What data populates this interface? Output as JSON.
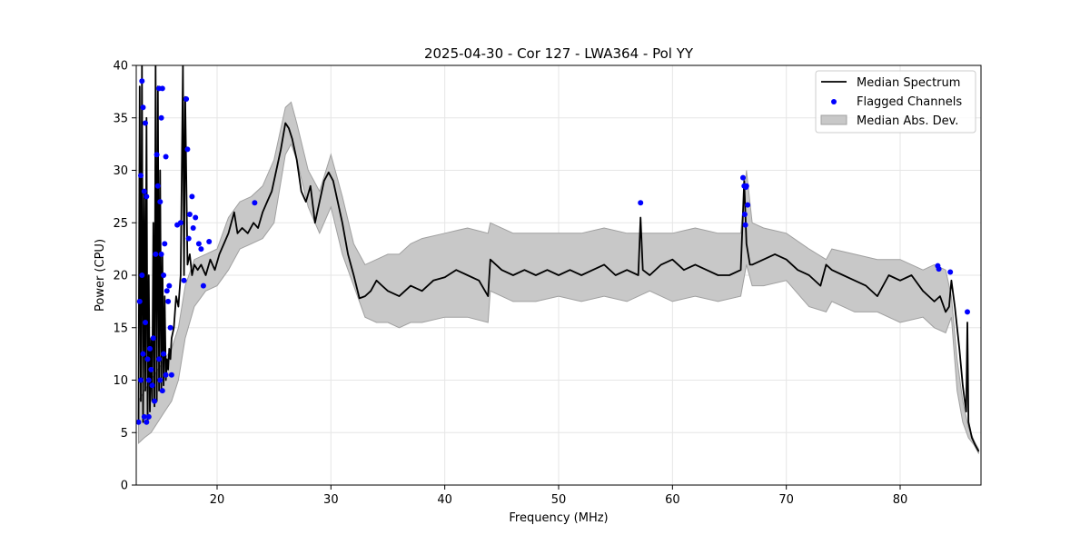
{
  "chart_data": {
    "type": "line",
    "title": "2025-04-30 - Cor 127 - LWA364 - Pol YY",
    "xlabel": "Frequency (MHz)",
    "ylabel": "Power (CPU)",
    "xlim": [
      12.9,
      87.1
    ],
    "ylim": [
      0,
      40
    ],
    "xticks": [
      20,
      30,
      40,
      50,
      60,
      70,
      80
    ],
    "yticks": [
      0,
      5,
      10,
      15,
      20,
      25,
      30,
      35,
      40
    ],
    "grid": true,
    "legend_position": "top-right",
    "colors": {
      "median": "#000000",
      "flagged": "#0000ff",
      "band_fill": "#c8c8c8",
      "band_edge": "#a0a0a0"
    },
    "series": [
      {
        "name": "Median Spectrum",
        "kind": "line",
        "x": [
          13.1,
          13.2,
          13.3,
          13.4,
          13.5,
          13.6,
          13.7,
          13.8,
          13.9,
          14.0,
          14.1,
          14.2,
          14.3,
          14.4,
          14.5,
          14.6,
          14.7,
          14.8,
          14.9,
          15.0,
          15.1,
          15.2,
          15.3,
          15.4,
          15.5,
          15.6,
          15.7,
          15.8,
          15.9,
          16.0,
          16.2,
          16.4,
          16.6,
          16.8,
          17.0,
          17.1,
          17.2,
          17.4,
          17.6,
          17.8,
          18.0,
          18.3,
          18.6,
          19.0,
          19.4,
          19.8,
          20.2,
          20.6,
          21.0,
          21.5,
          21.8,
          22.2,
          22.7,
          23.2,
          23.6,
          24.0,
          24.4,
          24.8,
          25.2,
          25.6,
          26.0,
          26.3,
          26.6,
          27.0,
          27.4,
          27.8,
          28.2,
          28.6,
          29.0,
          29.4,
          29.8,
          30.2,
          30.6,
          31.0,
          31.5,
          32.0,
          32.5,
          33.0,
          33.5,
          34.0,
          34.5,
          35.0,
          36.0,
          37.0,
          38.0,
          39.0,
          40.0,
          41.0,
          42.0,
          43.0,
          43.8,
          44.0,
          45.0,
          46.0,
          47.0,
          48.0,
          49.0,
          50.0,
          51.0,
          52.0,
          53.0,
          54.0,
          55.0,
          56.0,
          57.0,
          57.2,
          57.4,
          58.0,
          59.0,
          60.0,
          61.0,
          62.0,
          63.0,
          64.0,
          65.0,
          66.0,
          66.3,
          66.5,
          66.8,
          67.0,
          68.0,
          69.0,
          70.0,
          71.0,
          72.0,
          73.0,
          73.5,
          74.0,
          75.0,
          76.0,
          77.0,
          78.0,
          79.0,
          80.0,
          81.0,
          82.0,
          83.0,
          83.5,
          84.0,
          84.3,
          84.5,
          84.8,
          85.2,
          85.5,
          85.8,
          85.9,
          86.0,
          86.3,
          86.6,
          86.9
        ],
        "y": [
          6.0,
          38.0,
          8.0,
          40.0,
          6.0,
          28.0,
          9.0,
          35.0,
          6.0,
          20.0,
          7.0,
          14.0,
          8.0,
          25.0,
          7.5,
          40.0,
          8.0,
          38.0,
          9.0,
          30.0,
          9.0,
          22.0,
          9.5,
          18.0,
          10.0,
          12.0,
          11.0,
          13.0,
          12.0,
          14.0,
          15.0,
          18.0,
          17.0,
          20.0,
          40.0,
          20.0,
          37.0,
          21.0,
          22.0,
          20.0,
          21.0,
          20.5,
          21.0,
          20.0,
          21.5,
          20.5,
          22.0,
          23.0,
          24.0,
          26.0,
          24.0,
          24.5,
          24.0,
          25.0,
          24.5,
          26.0,
          27.0,
          28.0,
          30.0,
          32.0,
          34.5,
          34.0,
          33.0,
          31.0,
          28.0,
          27.0,
          28.5,
          25.0,
          27.0,
          29.0,
          29.8,
          29.0,
          27.0,
          25.0,
          22.0,
          20.0,
          17.8,
          18.0,
          18.5,
          19.5,
          19.0,
          18.5,
          18.0,
          19.0,
          18.5,
          19.5,
          19.8,
          20.5,
          20.0,
          19.5,
          18.0,
          21.5,
          20.5,
          20.0,
          20.5,
          20.0,
          20.5,
          20.0,
          20.5,
          20.0,
          20.5,
          21.0,
          20.0,
          20.5,
          20.0,
          25.5,
          20.5,
          20.0,
          21.0,
          21.5,
          20.5,
          21.0,
          20.5,
          20.0,
          20.0,
          20.5,
          29.0,
          23.0,
          21.0,
          21.0,
          21.5,
          22.0,
          21.5,
          20.5,
          20.0,
          19.0,
          21.0,
          20.5,
          20.0,
          19.5,
          19.0,
          18.0,
          20.0,
          19.5,
          20.0,
          18.5,
          17.5,
          18.0,
          16.5,
          17.0,
          19.5,
          17.0,
          13.0,
          9.5,
          7.0,
          15.5,
          6.0,
          4.5,
          3.8,
          3.2
        ]
      },
      {
        "name": "Flagged Channels",
        "kind": "scatter",
        "x": [
          13.1,
          13.2,
          13.3,
          13.3,
          13.4,
          13.4,
          13.5,
          13.5,
          13.6,
          13.6,
          13.7,
          13.7,
          13.8,
          13.8,
          13.9,
          14.0,
          14.0,
          14.1,
          14.2,
          14.3,
          14.4,
          14.5,
          14.6,
          14.7,
          14.8,
          14.9,
          14.9,
          15.0,
          15.0,
          15.1,
          15.1,
          15.2,
          15.2,
          15.3,
          15.3,
          15.4,
          15.5,
          15.5,
          15.6,
          15.7,
          15.8,
          15.9,
          16.0,
          16.5,
          16.8,
          17.1,
          17.3,
          17.4,
          17.5,
          17.6,
          17.8,
          17.9,
          18.1,
          18.4,
          18.6,
          18.8,
          19.3,
          23.3,
          57.2,
          66.2,
          66.3,
          66.35,
          66.4,
          66.45,
          66.5,
          66.6,
          83.3,
          83.4,
          84.4,
          85.9
        ],
        "y": [
          6.0,
          17.5,
          29.5,
          10.0,
          38.5,
          20.0,
          36.0,
          12.5,
          28.0,
          6.5,
          34.5,
          15.5,
          27.5,
          6.0,
          12.0,
          10.0,
          6.5,
          13.0,
          11.0,
          9.5,
          14.0,
          8.0,
          22.0,
          31.5,
          28.5,
          37.8,
          12.0,
          27.0,
          10.0,
          35.0,
          22.0,
          37.8,
          9.0,
          20.0,
          12.5,
          23.0,
          31.3,
          10.5,
          18.5,
          17.5,
          19.0,
          15.0,
          10.5,
          24.8,
          25.0,
          19.5,
          36.8,
          32.0,
          23.5,
          25.8,
          27.5,
          24.5,
          25.5,
          23.0,
          22.5,
          19.0,
          23.2,
          26.9,
          26.9,
          29.3,
          28.5,
          25.8,
          24.8,
          28.4,
          28.5,
          26.7,
          20.9,
          20.6,
          20.3,
          16.5
        ]
      },
      {
        "name": "Median Abs. Dev.",
        "kind": "band",
        "x": [
          13.1,
          13.6,
          14.2,
          14.8,
          15.4,
          16.0,
          16.6,
          17.2,
          18.0,
          19.0,
          20.0,
          21.0,
          22.0,
          23.0,
          24.0,
          25.0,
          26.0,
          26.5,
          27.0,
          28.0,
          29.0,
          30.0,
          31.0,
          32.0,
          33.0,
          34.0,
          35.0,
          36.0,
          37.0,
          38.0,
          40.0,
          42.0,
          43.8,
          44.0,
          46.0,
          48.0,
          50.0,
          52.0,
          54.0,
          56.0,
          58.0,
          60.0,
          62.0,
          64.0,
          66.0,
          66.5,
          67.0,
          68.0,
          70.0,
          72.0,
          73.5,
          74.0,
          76.0,
          78.0,
          80.0,
          82.0,
          83.0,
          84.0,
          84.5,
          85.0,
          85.5,
          86.0,
          86.5,
          86.9
        ],
        "lower": [
          4.0,
          4.5,
          5.0,
          6.0,
          7.0,
          8.0,
          10.0,
          14.0,
          17.0,
          18.5,
          19.0,
          20.5,
          22.5,
          23.0,
          23.5,
          25.0,
          31.5,
          32.5,
          31.0,
          26.5,
          24.0,
          26.5,
          22.0,
          19.0,
          16.0,
          15.5,
          15.5,
          15.0,
          15.5,
          15.5,
          16.0,
          16.0,
          15.5,
          18.5,
          17.5,
          17.5,
          18.0,
          17.5,
          18.0,
          17.5,
          18.5,
          17.5,
          18.0,
          17.5,
          18.0,
          21.0,
          19.0,
          19.0,
          19.5,
          17.0,
          16.5,
          17.5,
          16.5,
          16.5,
          15.5,
          16.0,
          15.0,
          14.5,
          16.0,
          9.0,
          6.0,
          4.5,
          3.8,
          3.0
        ],
        "upper": [
          8.0,
          9.0,
          10.0,
          11.0,
          12.0,
          13.0,
          15.0,
          19.0,
          21.5,
          22.0,
          22.5,
          25.5,
          27.0,
          27.5,
          28.5,
          31.0,
          36.0,
          36.5,
          34.5,
          30.0,
          28.0,
          31.5,
          27.5,
          23.0,
          21.0,
          21.5,
          22.0,
          22.0,
          23.0,
          23.5,
          24.0,
          24.5,
          24.0,
          25.0,
          24.0,
          24.0,
          24.0,
          24.0,
          24.5,
          24.0,
          24.0,
          24.0,
          24.5,
          24.0,
          24.0,
          30.0,
          25.0,
          24.5,
          24.0,
          22.5,
          21.5,
          22.5,
          22.0,
          21.5,
          21.5,
          20.5,
          21.0,
          20.5,
          18.0,
          12.0,
          8.0,
          5.5,
          4.2,
          3.4
        ]
      }
    ]
  }
}
